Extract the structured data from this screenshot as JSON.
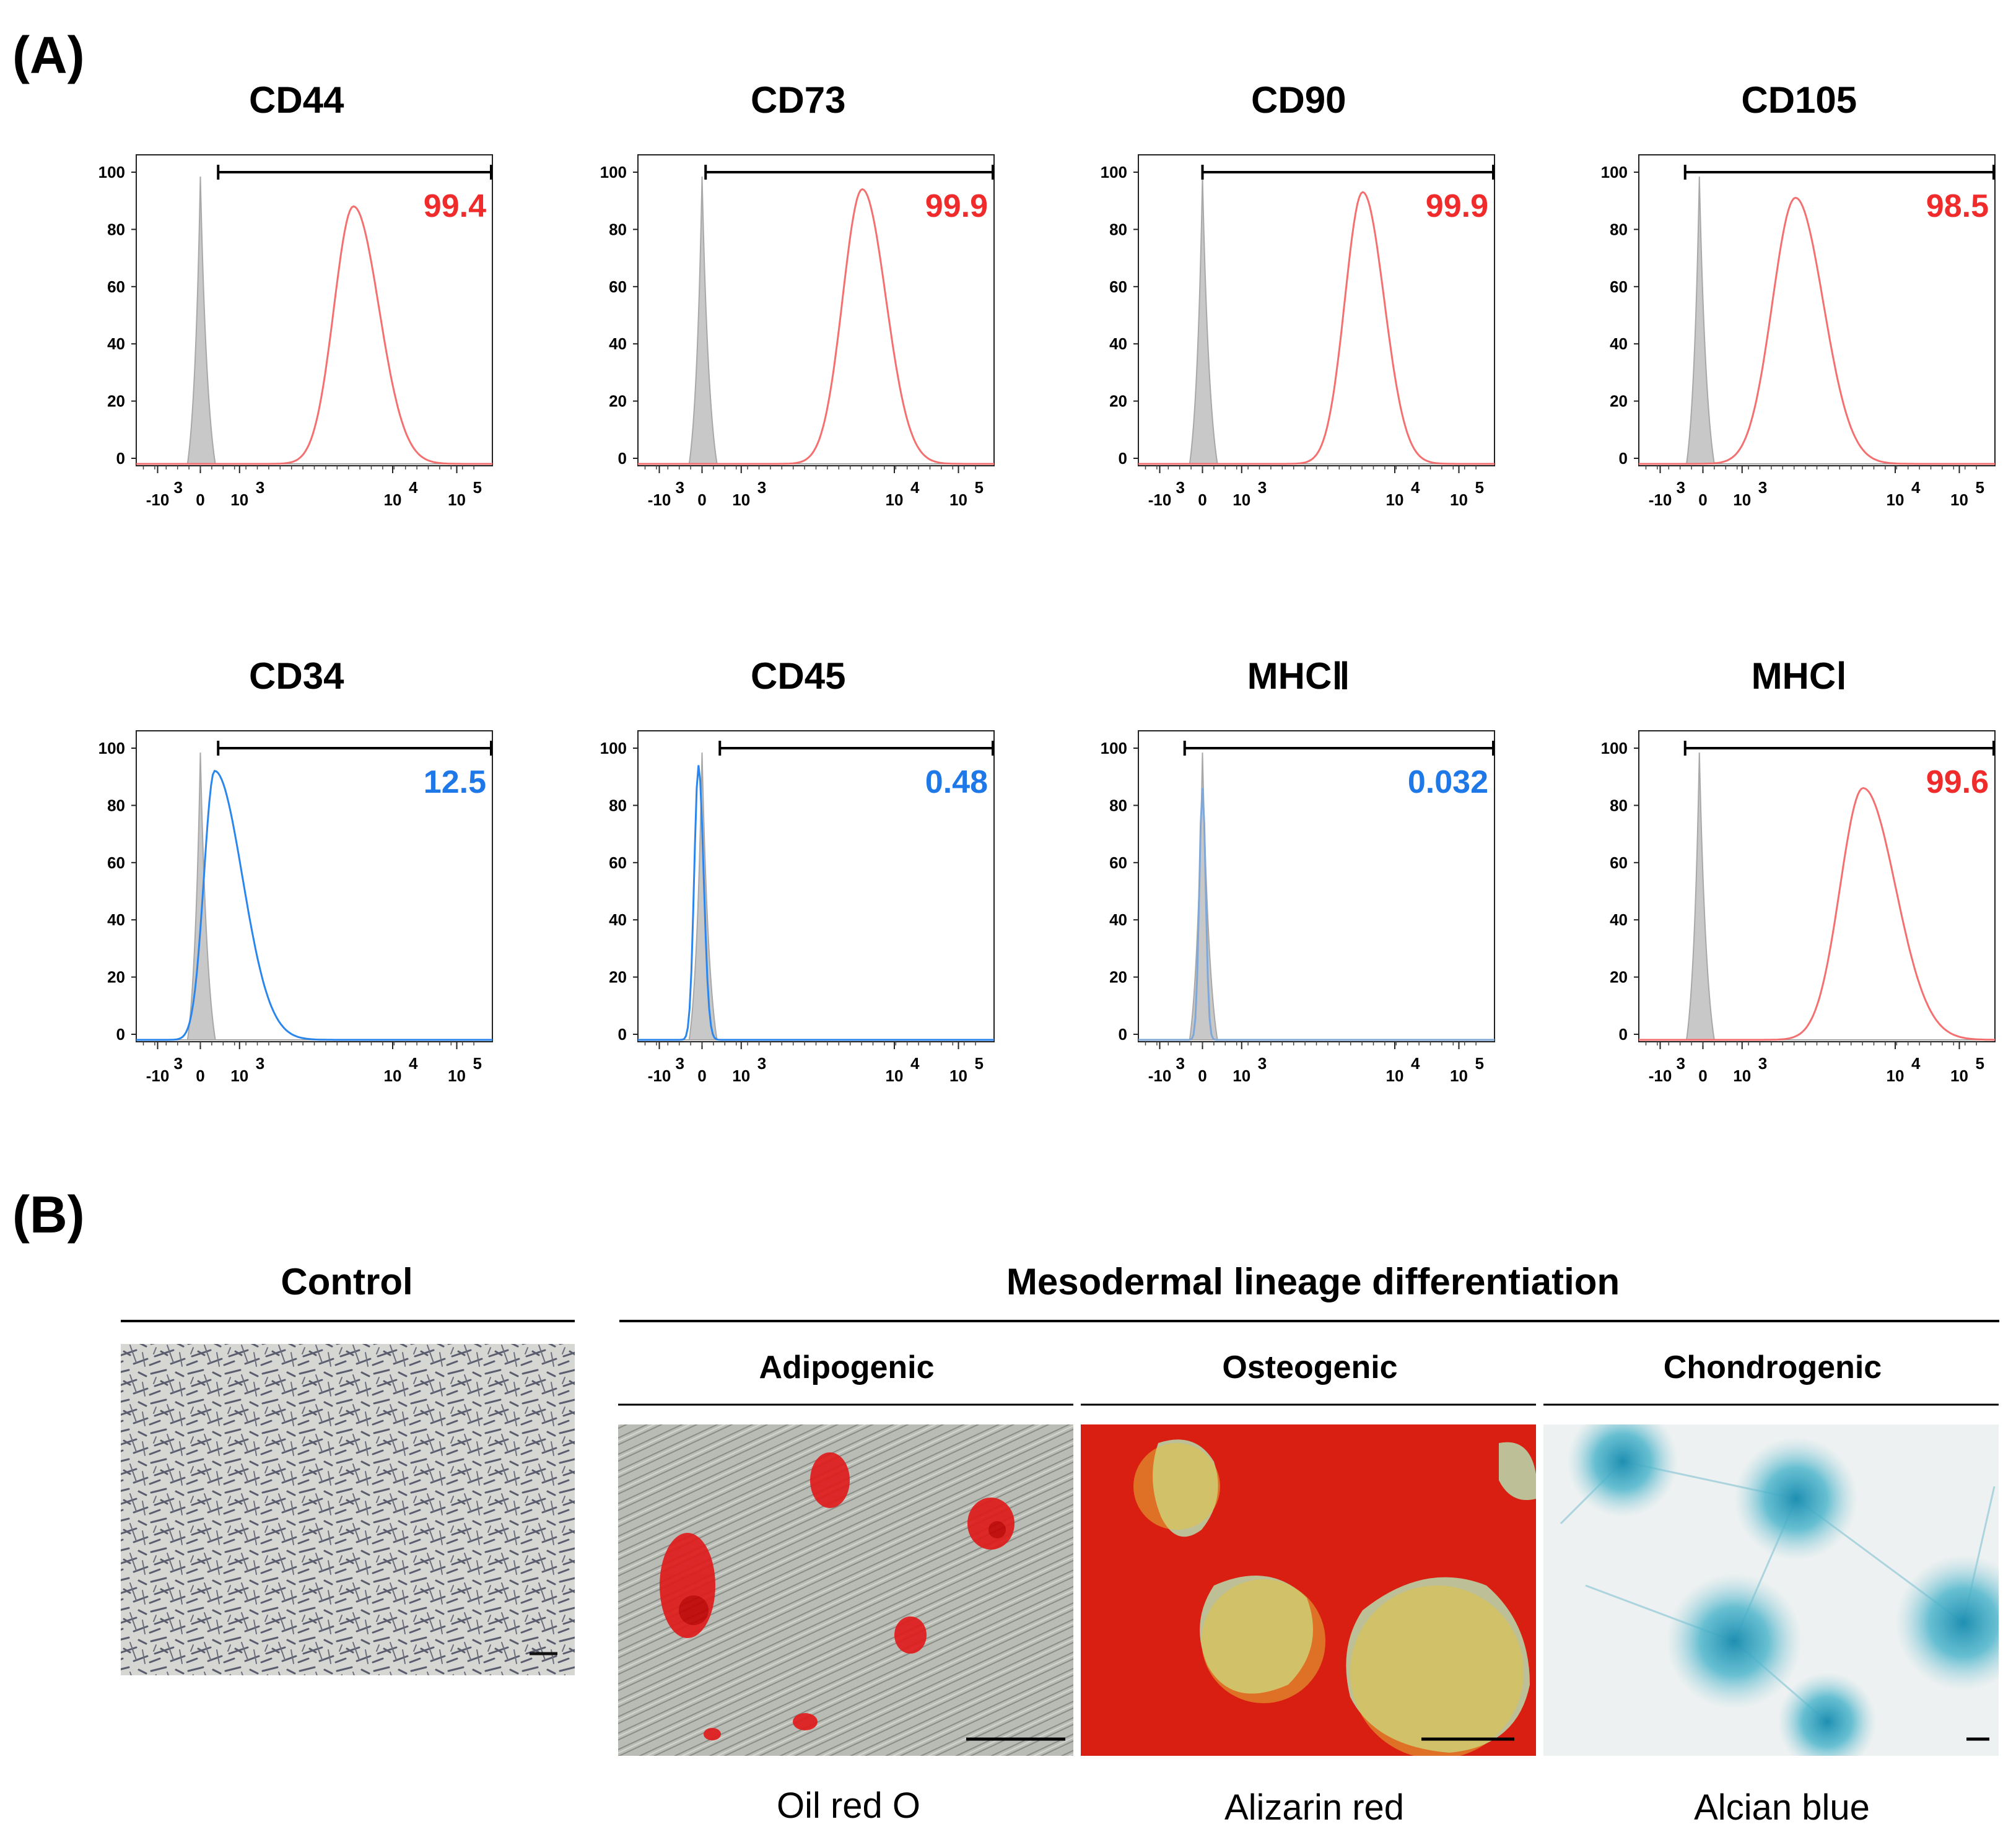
{
  "panel_a": {
    "label": "(A)",
    "x_ticks": [
      "-10",
      "0",
      "10",
      "10",
      "10"
    ],
    "x_tick_exponents": [
      "3",
      "",
      "3",
      "4",
      "5"
    ],
    "y_ticks": [
      "0",
      "20",
      "40",
      "60",
      "80",
      "100"
    ],
    "histograms": [
      {
        "title": "CD44",
        "percent": "99.4",
        "color": "#f02b2b",
        "curve_color": "#f47070"
      },
      {
        "title": "CD73",
        "percent": "99.9",
        "color": "#f02b2b",
        "curve_color": "#f47070"
      },
      {
        "title": "CD90",
        "percent": "99.9",
        "color": "#f02b2b",
        "curve_color": "#f47070"
      },
      {
        "title": "CD105",
        "percent": "98.5",
        "color": "#f02b2b",
        "curve_color": "#f47070"
      },
      {
        "title": "CD34",
        "percent": "12.5",
        "color": "#1f78e8",
        "curve_color": "#2a86ec"
      },
      {
        "title": "CD45",
        "percent": "0.48",
        "color": "#1f78e8",
        "curve_color": "#2a86ec"
      },
      {
        "title": "MHCⅡ",
        "percent": "0.032",
        "color": "#1f78e8",
        "curve_color": "#7fa8d8"
      },
      {
        "title": "MHCⅠ",
        "percent": "99.6",
        "color": "#f02b2b",
        "curve_color": "#f47070"
      }
    ]
  },
  "panel_b": {
    "label": "(B)",
    "control_header": "Control",
    "differentiation_header": "Mesodermal lineage differentiation",
    "lineages": [
      {
        "name": "Adipogenic",
        "stain": "Oil red O"
      },
      {
        "name": "Osteogenic",
        "stain": "Alizarin red"
      },
      {
        "name": "Chondrogenic",
        "stain": "Alcian blue"
      }
    ]
  }
}
